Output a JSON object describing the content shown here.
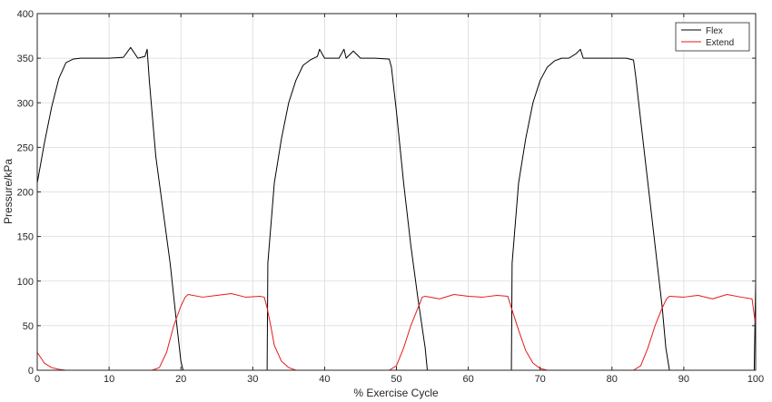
{
  "chart_data": {
    "type": "line",
    "title": "",
    "xlabel": "% Exercise Cycle",
    "ylabel": "Pressure/kPa",
    "xlim": [
      0,
      100
    ],
    "ylim": [
      0,
      400
    ],
    "xticks": [
      0,
      10,
      20,
      30,
      40,
      50,
      60,
      70,
      80,
      90,
      100
    ],
    "yticks": [
      0,
      50,
      100,
      150,
      200,
      250,
      300,
      350,
      400
    ],
    "grid": true,
    "legend_position": "top-right",
    "series": [
      {
        "name": "Flex",
        "color": "#000000",
        "points": [
          [
            0,
            210
          ],
          [
            1,
            255
          ],
          [
            2,
            295
          ],
          [
            3,
            327
          ],
          [
            4,
            345
          ],
          [
            5,
            349
          ],
          [
            6,
            350
          ],
          [
            8,
            350
          ],
          [
            10,
            350
          ],
          [
            12,
            351
          ],
          [
            13,
            362
          ],
          [
            14,
            350
          ],
          [
            15,
            352
          ],
          [
            15.3,
            360
          ],
          [
            15.6,
            325
          ],
          [
            16.5,
            240
          ],
          [
            17.5,
            180
          ],
          [
            18.5,
            120
          ],
          [
            19.3,
            60
          ],
          [
            20,
            10
          ],
          [
            20.3,
            0
          ],
          [
            32,
            0
          ],
          [
            32.1,
            120
          ],
          [
            33,
            210
          ],
          [
            34,
            260
          ],
          [
            35,
            300
          ],
          [
            36,
            325
          ],
          [
            37,
            342
          ],
          [
            38,
            348
          ],
          [
            39,
            352
          ],
          [
            39.3,
            360
          ],
          [
            40,
            350
          ],
          [
            42,
            350
          ],
          [
            42.7,
            360
          ],
          [
            43,
            350
          ],
          [
            44,
            358
          ],
          [
            45,
            350
          ],
          [
            47,
            350
          ],
          [
            49,
            349
          ],
          [
            49.3,
            340
          ],
          [
            50,
            290
          ],
          [
            51,
            210
          ],
          [
            52,
            140
          ],
          [
            53,
            80
          ],
          [
            54,
            25
          ],
          [
            54.3,
            0
          ],
          [
            66,
            0
          ],
          [
            66.1,
            120
          ],
          [
            67,
            210
          ],
          [
            68,
            260
          ],
          [
            69,
            300
          ],
          [
            70,
            325
          ],
          [
            71,
            340
          ],
          [
            72,
            347
          ],
          [
            73,
            350
          ],
          [
            74,
            350
          ],
          [
            75,
            355
          ],
          [
            75.6,
            360
          ],
          [
            76,
            350
          ],
          [
            78,
            350
          ],
          [
            80,
            350
          ],
          [
            82,
            350
          ],
          [
            83,
            348
          ],
          [
            83.3,
            330
          ],
          [
            84,
            280
          ],
          [
            85,
            210
          ],
          [
            86,
            140
          ],
          [
            87,
            70
          ],
          [
            87.5,
            25
          ],
          [
            88,
            0
          ],
          [
            99.8,
            0
          ],
          [
            100,
            100
          ]
        ]
      },
      {
        "name": "Extend",
        "color": "#e41a1c",
        "points": [
          [
            0,
            20
          ],
          [
            0.5,
            14
          ],
          [
            1,
            8
          ],
          [
            2,
            3
          ],
          [
            3,
            1
          ],
          [
            4,
            0
          ],
          [
            16,
            0
          ],
          [
            17,
            3
          ],
          [
            18,
            20
          ],
          [
            19,
            50
          ],
          [
            20,
            72
          ],
          [
            20.6,
            82
          ],
          [
            21,
            85
          ],
          [
            23,
            82
          ],
          [
            25,
            84
          ],
          [
            27,
            86
          ],
          [
            29,
            82
          ],
          [
            31,
            83
          ],
          [
            31.6,
            82
          ],
          [
            32,
            70
          ],
          [
            32.5,
            50
          ],
          [
            33,
            28
          ],
          [
            34,
            10
          ],
          [
            35,
            3
          ],
          [
            36,
            0
          ],
          [
            49,
            0
          ],
          [
            50,
            5
          ],
          [
            51,
            25
          ],
          [
            52,
            50
          ],
          [
            53,
            70
          ],
          [
            53.6,
            82
          ],
          [
            54,
            83
          ],
          [
            56,
            80
          ],
          [
            58,
            85
          ],
          [
            60,
            83
          ],
          [
            62,
            82
          ],
          [
            64,
            84
          ],
          [
            65.5,
            83
          ],
          [
            66,
            70
          ],
          [
            67,
            45
          ],
          [
            68,
            22
          ],
          [
            69,
            8
          ],
          [
            70,
            2
          ],
          [
            71,
            0
          ],
          [
            83,
            0
          ],
          [
            84,
            5
          ],
          [
            85,
            25
          ],
          [
            86,
            50
          ],
          [
            87,
            70
          ],
          [
            87.6,
            80
          ],
          [
            88,
            83
          ],
          [
            90,
            82
          ],
          [
            92,
            84
          ],
          [
            94,
            80
          ],
          [
            96,
            85
          ],
          [
            98,
            82
          ],
          [
            99.5,
            80
          ],
          [
            100,
            50
          ]
        ]
      }
    ],
    "colors": {
      "axes_bg": "#ffffff",
      "grid": "#dadada",
      "axis": "#262626"
    }
  }
}
